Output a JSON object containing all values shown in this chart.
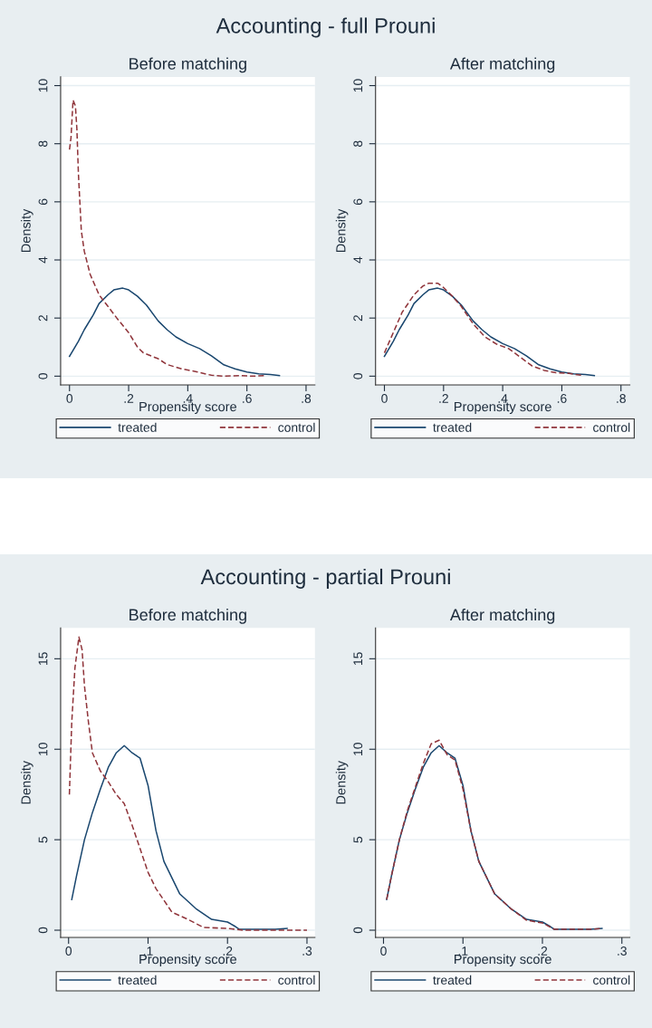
{
  "chart_data": [
    {
      "type": "line",
      "title": "Accounting - full Prouni",
      "subtitle": "Before matching",
      "xlabel": "Propensity score",
      "ylabel": "Density",
      "xlim": [
        -0.03,
        0.83
      ],
      "ylim": [
        -0.3,
        10.3
      ],
      "xticks": [
        0,
        {
          "value": 0.2,
          "label": ".2"
        },
        {
          "value": 0.4,
          "label": ".4"
        },
        {
          "value": 0.6,
          "label": ".6"
        },
        {
          "value": 0.8,
          "label": ".8"
        }
      ],
      "yticks": [
        0,
        2,
        4,
        6,
        8,
        10
      ],
      "grid": "y",
      "legend": "bottom",
      "series": [
        {
          "name": "treated",
          "color": "#1a476f",
          "line_style": "solid",
          "x": [
            0,
            0.03,
            0.05,
            0.08,
            0.1,
            0.13,
            0.15,
            0.18,
            0.2,
            0.23,
            0.26,
            0.3,
            0.33,
            0.36,
            0.4,
            0.44,
            0.48,
            0.52,
            0.56,
            0.6,
            0.64,
            0.68,
            0.71
          ],
          "values": [
            0.68,
            1.2,
            1.6,
            2.1,
            2.5,
            2.8,
            2.97,
            3.03,
            2.97,
            2.75,
            2.45,
            1.9,
            1.6,
            1.35,
            1.12,
            0.95,
            0.7,
            0.4,
            0.25,
            0.14,
            0.08,
            0.06,
            0.02
          ]
        },
        {
          "name": "control",
          "color": "#90353b",
          "line_style": "dashed",
          "x": [
            0,
            0.005,
            0.012,
            0.02,
            0.025,
            0.03,
            0.04,
            0.05,
            0.07,
            0.1,
            0.13,
            0.16,
            0.2,
            0.23,
            0.25,
            0.3,
            0.33,
            0.38,
            0.43,
            0.48,
            0.52,
            0.58,
            0.62,
            0.665
          ],
          "values": [
            7.8,
            8.2,
            9.5,
            9.3,
            8.5,
            7.0,
            5.0,
            4.3,
            3.5,
            2.8,
            2.4,
            2.0,
            1.5,
            1.0,
            0.8,
            0.6,
            0.4,
            0.25,
            0.15,
            0.03,
            0.0,
            0.02,
            0.0,
            0.02
          ]
        }
      ]
    },
    {
      "type": "line",
      "subtitle": "After matching",
      "xlabel": "Propensity score",
      "ylabel": "Density",
      "xlim": [
        -0.03,
        0.83
      ],
      "ylim": [
        -0.3,
        10.3
      ],
      "xticks": [
        0,
        {
          "value": 0.2,
          "label": ".2"
        },
        {
          "value": 0.4,
          "label": ".4"
        },
        {
          "value": 0.6,
          "label": ".6"
        },
        {
          "value": 0.8,
          "label": ".8"
        }
      ],
      "yticks": [
        0,
        2,
        4,
        6,
        8,
        10
      ],
      "grid": "y",
      "legend": "bottom",
      "series": [
        {
          "name": "treated",
          "color": "#1a476f",
          "line_style": "solid",
          "x": [
            0,
            0.03,
            0.05,
            0.08,
            0.1,
            0.13,
            0.15,
            0.18,
            0.2,
            0.23,
            0.26,
            0.3,
            0.33,
            0.36,
            0.4,
            0.44,
            0.48,
            0.52,
            0.56,
            0.6,
            0.64,
            0.68,
            0.71
          ],
          "values": [
            0.68,
            1.2,
            1.6,
            2.1,
            2.5,
            2.8,
            2.97,
            3.03,
            2.97,
            2.75,
            2.45,
            1.9,
            1.6,
            1.35,
            1.12,
            0.95,
            0.7,
            0.4,
            0.25,
            0.14,
            0.08,
            0.06,
            0.02
          ]
        },
        {
          "name": "control",
          "color": "#90353b",
          "line_style": "dashed",
          "x": [
            0,
            0.03,
            0.06,
            0.1,
            0.13,
            0.15,
            0.18,
            0.2,
            0.23,
            0.26,
            0.3,
            0.34,
            0.38,
            0.42,
            0.46,
            0.5,
            0.54,
            0.58,
            0.62,
            0.665
          ],
          "values": [
            0.8,
            1.5,
            2.2,
            2.8,
            3.1,
            3.2,
            3.2,
            3.05,
            2.75,
            2.4,
            1.8,
            1.35,
            1.1,
            0.95,
            0.65,
            0.35,
            0.2,
            0.12,
            0.1,
            0.03
          ]
        }
      ]
    },
    {
      "type": "line",
      "title": "Accounting - partial Prouni",
      "subtitle": "Before matching",
      "xlabel": "Propensity score",
      "ylabel": "Density",
      "xlim": [
        -0.01,
        0.31
      ],
      "ylim": [
        -0.4,
        16.7
      ],
      "xticks": [
        0,
        {
          "value": 0.1,
          "label": ".1"
        },
        {
          "value": 0.2,
          "label": ".2"
        },
        {
          "value": 0.3,
          "label": ".3"
        }
      ],
      "yticks": [
        0,
        5,
        10,
        15
      ],
      "grid": "y",
      "legend": "bottom",
      "series": [
        {
          "name": "treated",
          "color": "#1a476f",
          "line_style": "solid",
          "x": [
            0.004,
            0.01,
            0.02,
            0.03,
            0.04,
            0.05,
            0.06,
            0.07,
            0.08,
            0.09,
            0.1,
            0.11,
            0.12,
            0.14,
            0.16,
            0.18,
            0.2,
            0.21,
            0.215,
            0.26,
            0.275
          ],
          "values": [
            1.7,
            3.0,
            5.0,
            6.5,
            7.8,
            9.0,
            9.8,
            10.2,
            9.8,
            9.5,
            8.0,
            5.5,
            3.8,
            2.0,
            1.2,
            0.6,
            0.45,
            0.2,
            0.05,
            0.05,
            0.1
          ]
        },
        {
          "name": "control",
          "color": "#90353b",
          "line_style": "dashed",
          "x": [
            0.001,
            0.004,
            0.008,
            0.013,
            0.017,
            0.02,
            0.025,
            0.03,
            0.04,
            0.05,
            0.06,
            0.07,
            0.08,
            0.09,
            0.1,
            0.11,
            0.13,
            0.15,
            0.17,
            0.2,
            0.22,
            0.3
          ],
          "values": [
            7.5,
            11.5,
            14.5,
            16.2,
            15.5,
            13.5,
            11.5,
            9.8,
            8.8,
            8.2,
            7.5,
            7.0,
            5.8,
            4.5,
            3.2,
            2.3,
            1.0,
            0.6,
            0.15,
            0.1,
            0.0,
            0.0
          ]
        }
      ]
    },
    {
      "type": "line",
      "subtitle": "After matching",
      "xlabel": "Propensity score",
      "ylabel": "Density",
      "xlim": [
        -0.01,
        0.31
      ],
      "ylim": [
        -0.4,
        16.7
      ],
      "xticks": [
        0,
        {
          "value": 0.1,
          "label": ".1"
        },
        {
          "value": 0.2,
          "label": ".2"
        },
        {
          "value": 0.3,
          "label": ".3"
        }
      ],
      "yticks": [
        0,
        5,
        10,
        15
      ],
      "grid": "y",
      "legend": "bottom",
      "series": [
        {
          "name": "treated",
          "color": "#1a476f",
          "line_style": "solid",
          "x": [
            0.004,
            0.01,
            0.02,
            0.03,
            0.04,
            0.05,
            0.06,
            0.07,
            0.08,
            0.09,
            0.1,
            0.11,
            0.12,
            0.14,
            0.16,
            0.18,
            0.2,
            0.21,
            0.215,
            0.26,
            0.275
          ],
          "values": [
            1.7,
            3.0,
            5.0,
            6.5,
            7.8,
            9.0,
            9.8,
            10.2,
            9.8,
            9.5,
            8.0,
            5.5,
            3.8,
            2.0,
            1.2,
            0.6,
            0.45,
            0.2,
            0.05,
            0.05,
            0.1
          ]
        },
        {
          "name": "control",
          "color": "#90353b",
          "line_style": "dashed",
          "x": [
            0.004,
            0.01,
            0.02,
            0.03,
            0.04,
            0.05,
            0.06,
            0.065,
            0.07,
            0.075,
            0.08,
            0.09,
            0.1,
            0.11,
            0.12,
            0.14,
            0.16,
            0.18,
            0.2,
            0.215,
            0.26,
            0.275
          ],
          "values": [
            1.7,
            3.0,
            5.0,
            6.6,
            7.9,
            9.2,
            10.3,
            10.4,
            10.5,
            10.1,
            9.7,
            9.4,
            7.8,
            5.5,
            3.8,
            2.0,
            1.2,
            0.55,
            0.4,
            0.05,
            0.05,
            0.1
          ]
        }
      ]
    }
  ]
}
